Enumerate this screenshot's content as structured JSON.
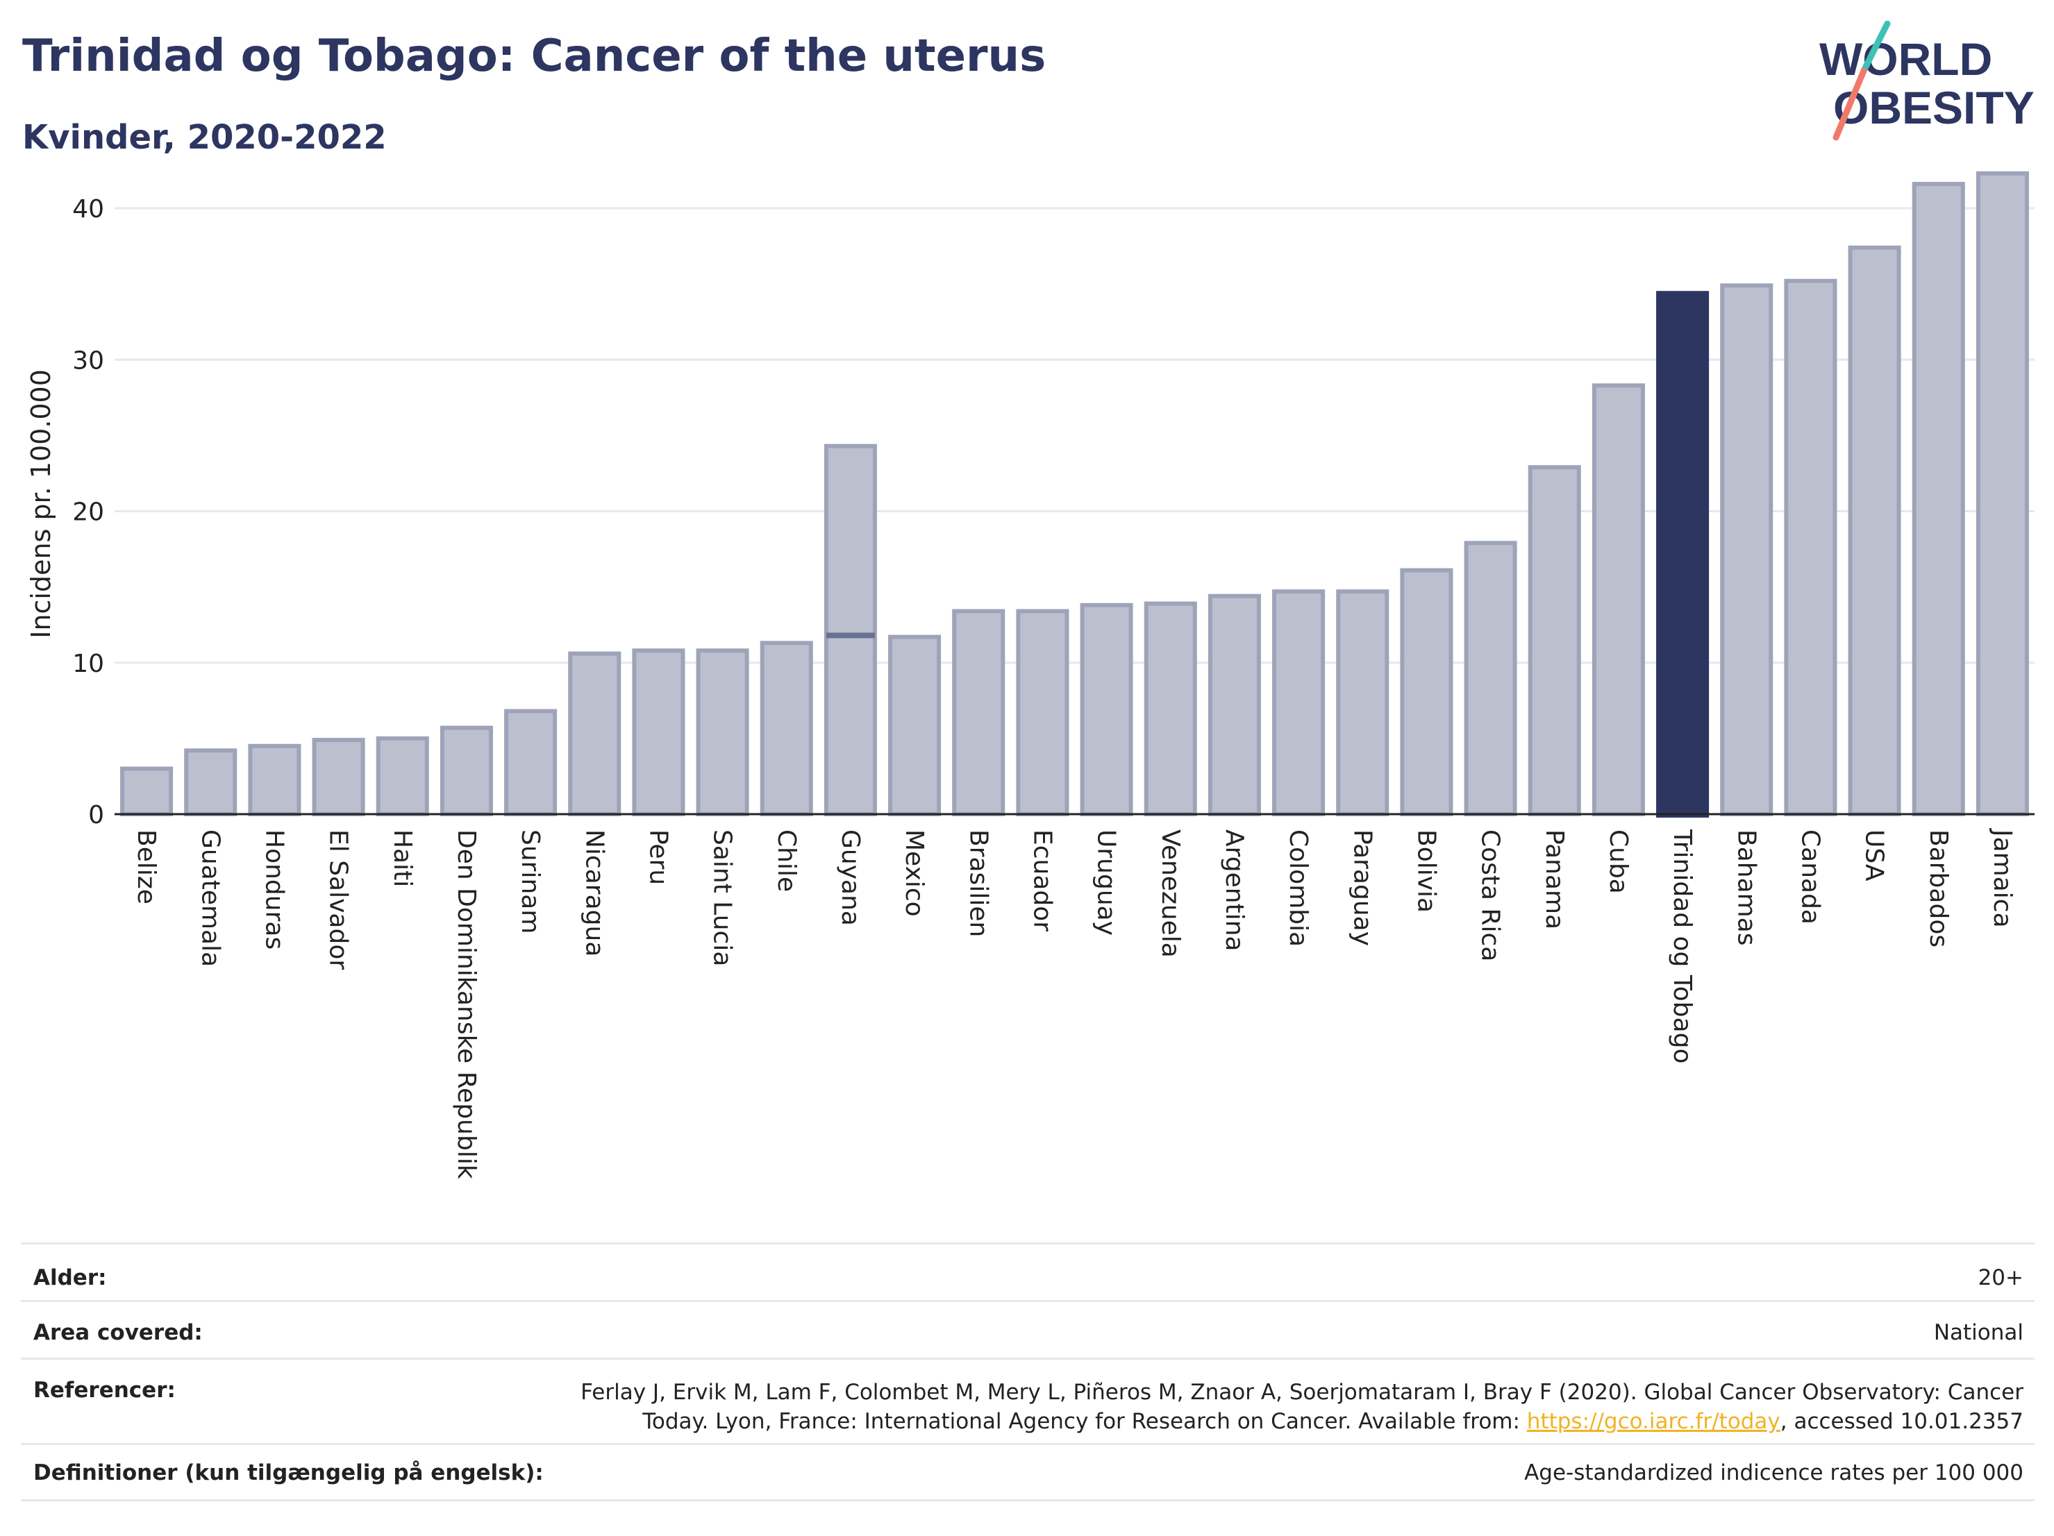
{
  "header": {
    "title": "Trinidad og Tobago: Cancer of the uterus",
    "subtitle": "Kvinder, 2020-2022"
  },
  "logo": {
    "line1": "WORLD",
    "line2": "OBESITY"
  },
  "chart_data": {
    "type": "bar",
    "ylabel": "Incidens pr. 100.000",
    "ylim": [
      0,
      43
    ],
    "yticks": [
      0,
      10,
      20,
      30,
      40
    ],
    "grid": true,
    "highlight": "Trinidad og Tobago",
    "categories": [
      "Belize",
      "Guatemala",
      "Honduras",
      "El Salvador",
      "Haiti",
      "Den Dominikanske Republik",
      "Surinam",
      "Nicaragua",
      "Peru",
      "Saint Lucia",
      "Chile",
      "Guyana",
      "Mexico",
      "Brasilien",
      "Ecuador",
      "Uruguay",
      "Venezuela",
      "Argentina",
      "Colombia",
      "Paraguay",
      "Bolivia",
      "Costa Rica",
      "Panama",
      "Cuba",
      "Trinidad og Tobago",
      "Bahamas",
      "Canada",
      "USA",
      "Barbados",
      "Jamaica"
    ],
    "values": [
      3.0,
      4.2,
      4.5,
      4.9,
      5.0,
      5.7,
      6.8,
      10.6,
      10.8,
      10.8,
      11.3,
      24.3,
      11.7,
      13.4,
      13.4,
      13.8,
      13.9,
      14.4,
      14.7,
      14.7,
      16.1,
      17.9,
      22.9,
      28.3,
      34.4,
      34.9,
      35.2,
      37.4,
      41.6,
      42.3
    ],
    "markers": [
      {
        "category": "Guyana",
        "value": 11.8
      }
    ],
    "colors": {
      "bar": "#bcc0ce",
      "bar_edge": "#9ea3b9",
      "highlight": "#2d3561",
      "marker": "#6a7090",
      "grid": "#e6e8ef"
    }
  },
  "footer": {
    "age_label": "Alder:",
    "age_value": "20+",
    "area_label": "Area covered:",
    "area_value": "National",
    "ref_label": "Referencer:",
    "ref_line1": "Ferlay J, Ervik M, Lam F, Colombet M, Mery L, Piñeros M, Znaor A, Soerjomataram I, Bray F (2020). Global Cancer Observatory: Cancer",
    "ref_line2_pre": "Today. Lyon, France: International Agency for Research on Cancer. Available from: ",
    "ref_link": "https://gco.iarc.fr/today",
    "ref_line2_post": ", accessed 10.01.2357",
    "def_label": "Definitioner (kun tilgængelig på engelsk):",
    "def_value": "Age-standardized indicence rates per 100 000"
  }
}
